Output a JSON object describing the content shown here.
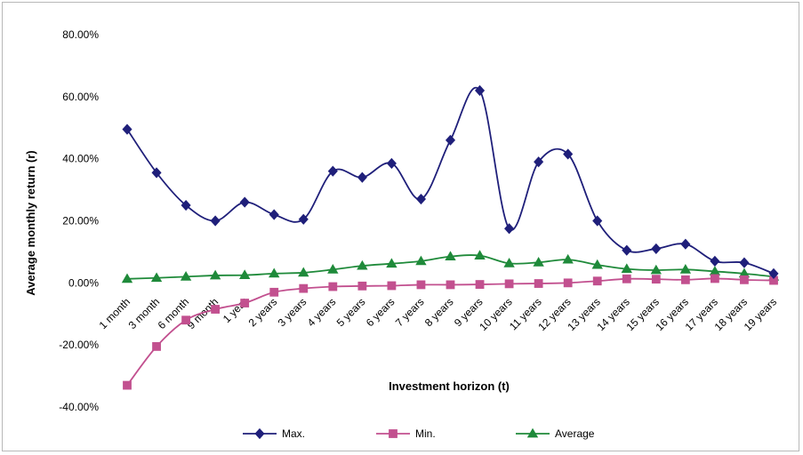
{
  "chart_data": {
    "type": "line",
    "title": "",
    "xlabel": "Investment horizon (t)",
    "ylabel": "Average monthly return (r)",
    "ylim": [
      -40,
      80
    ],
    "yticks": [
      -40,
      -20,
      0,
      20,
      40,
      60,
      80
    ],
    "ytick_labels": [
      "-40.00%",
      "-20.00%",
      "0.00%",
      "20.00%",
      "40.00%",
      "60.00%",
      "80.00%"
    ],
    "grid": false,
    "legend_position": "bottom",
    "categories": [
      "1 month",
      "3 month",
      "6 month",
      "9 month",
      "1 year",
      "2 years",
      "3 years",
      "4 years",
      "5 years",
      "6 years",
      "7 years",
      "8 years",
      "9 years",
      "10 years",
      "11 years",
      "12 years",
      "13 years",
      "14 years",
      "15 years",
      "16 years",
      "17 years",
      "18 years",
      "19 years"
    ],
    "series": [
      {
        "name": "Max.",
        "color": "#1f1f7a",
        "marker": "diamond",
        "values": [
          49.5,
          35.5,
          25.0,
          20.0,
          26.0,
          22.0,
          20.5,
          36.0,
          34.0,
          38.5,
          27.0,
          46.0,
          62.0,
          17.5,
          39.0,
          41.5,
          20.0,
          10.5,
          11.0,
          12.5,
          7.0,
          6.5,
          3.0
        ]
      },
      {
        "name": "Min.",
        "color": "#c2508f",
        "marker": "square",
        "values": [
          -33.0,
          -20.5,
          -12.0,
          -8.5,
          -6.5,
          -3.0,
          -1.8,
          -1.2,
          -1.0,
          -0.9,
          -0.6,
          -0.6,
          -0.5,
          -0.3,
          -0.2,
          0.0,
          0.6,
          1.3,
          1.2,
          1.0,
          1.4,
          1.0,
          0.8
        ]
      },
      {
        "name": "Average",
        "color": "#1f8a3a",
        "marker": "triangle",
        "values": [
          1.3,
          1.6,
          2.0,
          2.4,
          2.5,
          3.0,
          3.3,
          4.3,
          5.5,
          6.2,
          7.0,
          8.5,
          8.8,
          6.3,
          6.6,
          7.5,
          5.8,
          4.5,
          4.1,
          4.3,
          3.7,
          3.0,
          2.0
        ]
      }
    ]
  }
}
